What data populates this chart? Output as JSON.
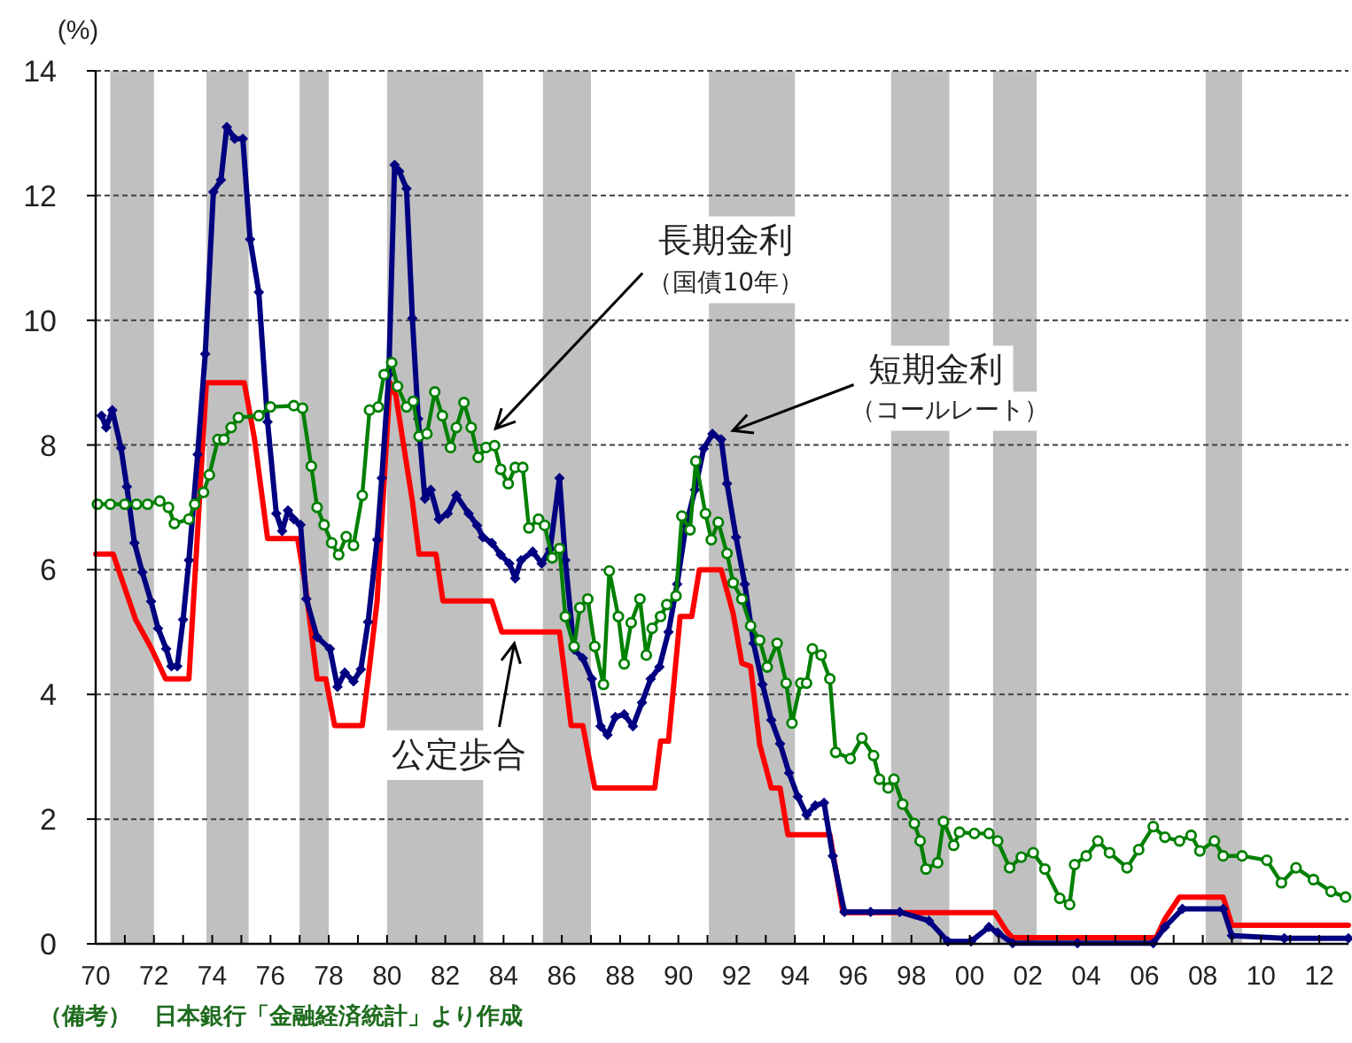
{
  "chart_data": {
    "type": "line",
    "ylabel": "(%)",
    "xlim": [
      1970,
      2013
    ],
    "ylim": [
      0,
      14
    ],
    "yticks": [
      0,
      2,
      4,
      6,
      8,
      10,
      12,
      14
    ],
    "grid": "y",
    "xticks": [
      {
        "value": 1970,
        "label": "70"
      },
      {
        "value": 1971,
        "label": null
      },
      {
        "value": 1972,
        "label": "72"
      },
      {
        "value": 1973,
        "label": null
      },
      {
        "value": 1974,
        "label": "74"
      },
      {
        "value": 1975,
        "label": null
      },
      {
        "value": 1976,
        "label": "76"
      },
      {
        "value": 1977,
        "label": null
      },
      {
        "value": 1978,
        "label": "78"
      },
      {
        "value": 1979,
        "label": null
      },
      {
        "value": 1980,
        "label": "80"
      },
      {
        "value": 1981,
        "label": null
      },
      {
        "value": 1982,
        "label": "82"
      },
      {
        "value": 1983,
        "label": null
      },
      {
        "value": 1984,
        "label": "84"
      },
      {
        "value": 1985,
        "label": null
      },
      {
        "value": 1986,
        "label": "86"
      },
      {
        "value": 1987,
        "label": null
      },
      {
        "value": 1988,
        "label": "88"
      },
      {
        "value": 1989,
        "label": null
      },
      {
        "value": 1990,
        "label": "90"
      },
      {
        "value": 1991,
        "label": null
      },
      {
        "value": 1992,
        "label": "92"
      },
      {
        "value": 1993,
        "label": null
      },
      {
        "value": 1994,
        "label": "94"
      },
      {
        "value": 1995,
        "label": null
      },
      {
        "value": 1996,
        "label": "96"
      },
      {
        "value": 1997,
        "label": null
      },
      {
        "value": 1998,
        "label": "98"
      },
      {
        "value": 1999,
        "label": null
      },
      {
        "value": 2000,
        "label": "00"
      },
      {
        "value": 2001,
        "label": null
      },
      {
        "value": 2002,
        "label": "02"
      },
      {
        "value": 2003,
        "label": null
      },
      {
        "value": 2004,
        "label": "04"
      },
      {
        "value": 2005,
        "label": null
      },
      {
        "value": 2006,
        "label": "06"
      },
      {
        "value": 2007,
        "label": null
      },
      {
        "value": 2008,
        "label": "08"
      },
      {
        "value": 2009,
        "label": null
      },
      {
        "value": 2010,
        "label": "10"
      },
      {
        "value": 2011,
        "label": null
      },
      {
        "value": 2012,
        "label": "12"
      }
    ],
    "bands": [
      {
        "axis": "x",
        "from": 1970.5,
        "to": 1972.0,
        "color": "#c0c0c0"
      },
      {
        "axis": "x",
        "from": 1973.8,
        "to": 1975.25,
        "color": "#c0c0c0"
      },
      {
        "axis": "x",
        "from": 1977.0,
        "to": 1978.0,
        "color": "#c0c0c0"
      },
      {
        "axis": "x",
        "from": 1980.0,
        "to": 1983.3,
        "color": "#c0c0c0"
      },
      {
        "axis": "x",
        "from": 1985.35,
        "to": 1987.0,
        "color": "#c0c0c0"
      },
      {
        "axis": "x",
        "from": 1991.05,
        "to": 1994.0,
        "color": "#c0c0c0"
      },
      {
        "axis": "x",
        "from": 1997.3,
        "to": 1999.3,
        "color": "#c0c0c0"
      },
      {
        "axis": "x",
        "from": 2000.8,
        "to": 2002.3,
        "color": "#c0c0c0"
      },
      {
        "axis": "x",
        "from": 2008.1,
        "to": 2009.35,
        "color": "#c0c0c0"
      }
    ],
    "series": [
      {
        "color": "#ff0000",
        "marker": "none",
        "x": [
          1970.0,
          1970.6,
          1971.37,
          1971.9,
          1972.4,
          1973.2,
          1973.8,
          1975.1,
          1975.45,
          1975.9,
          1976.93,
          1977.2,
          1977.6,
          1977.9,
          1978.2,
          1979.15,
          1979.35,
          1979.66,
          1980.1,
          1980.3,
          1980.87,
          1981.1,
          1981.68,
          1981.92,
          1983.6,
          1983.94,
          1985.92,
          1986.32,
          1986.72,
          1987.13,
          1989.19,
          1989.39,
          1989.66,
          1990.06,
          1990.46,
          1990.72,
          1991.47,
          1991.88,
          1992.18,
          1992.48,
          1992.79,
          1993.19,
          1993.49,
          1993.76,
          1995.2,
          1995.65,
          2000.86,
          2001.27,
          2001.47,
          2006.4,
          2006.7,
          2007.2,
          2008.7,
          2009.0,
          2013.0
        ],
        "values": [
          6.25,
          6.25,
          5.2,
          4.75,
          4.25,
          4.25,
          9.0,
          9.0,
          8.1,
          6.5,
          6.5,
          5.75,
          4.25,
          4.25,
          3.5,
          3.5,
          4.25,
          5.5,
          9.0,
          8.8,
          7.1,
          6.25,
          6.25,
          5.5,
          5.5,
          5.0,
          5.0,
          3.5,
          3.5,
          2.5,
          2.5,
          3.25,
          3.25,
          5.25,
          5.25,
          6.0,
          6.0,
          5.3,
          4.5,
          4.45,
          3.2,
          2.5,
          2.5,
          1.75,
          1.75,
          0.5,
          0.5,
          0.2,
          0.1,
          0.1,
          0.4,
          0.75,
          0.75,
          0.3,
          0.3
        ]
      },
      {
        "color": "#000080",
        "marker": "diamond",
        "x": [
          1970.2,
          1970.36,
          1970.57,
          1970.87,
          1971.07,
          1971.33,
          1971.6,
          1971.9,
          1972.14,
          1972.42,
          1972.6,
          1972.8,
          1973.0,
          1973.2,
          1973.5,
          1973.76,
          1974.04,
          1974.3,
          1974.5,
          1974.77,
          1975.05,
          1975.3,
          1975.6,
          1975.9,
          1976.2,
          1976.4,
          1976.6,
          1976.8,
          1977.03,
          1977.23,
          1977.6,
          1978.04,
          1978.3,
          1978.55,
          1978.85,
          1979.1,
          1979.35,
          1979.66,
          1979.82,
          1980.06,
          1980.26,
          1980.42,
          1980.67,
          1980.87,
          1981.07,
          1981.3,
          1981.5,
          1981.78,
          1982.08,
          1982.38,
          1982.8,
          1983.09,
          1983.29,
          1983.6,
          1983.9,
          1984.2,
          1984.4,
          1984.6,
          1985.0,
          1985.31,
          1985.6,
          1985.92,
          1986.12,
          1986.42,
          1986.72,
          1987.03,
          1987.33,
          1987.57,
          1987.84,
          1988.14,
          1988.44,
          1988.75,
          1989.05,
          1989.35,
          1989.66,
          1989.96,
          1990.26,
          1990.57,
          1990.87,
          1991.17,
          1991.47,
          1991.67,
          1991.98,
          1992.28,
          1992.58,
          1992.89,
          1993.19,
          1993.49,
          1993.8,
          1994.1,
          1994.4,
          1994.7,
          1995.0,
          1995.3,
          1995.7,
          1996.6,
          1997.6,
          1998.6,
          1999.25,
          2000.05,
          2000.66,
          2000.96,
          2001.47,
          2003.7,
          2006.3,
          2006.7,
          2007.3,
          2008.7,
          2009.0,
          2010.8,
          2013.0
        ],
        "values": [
          8.47,
          8.28,
          8.56,
          7.95,
          7.33,
          6.43,
          5.96,
          5.49,
          5.06,
          4.73,
          4.45,
          4.45,
          5.2,
          6.15,
          7.85,
          9.46,
          12.06,
          12.25,
          13.1,
          12.91,
          12.91,
          11.3,
          10.45,
          8.37,
          6.9,
          6.62,
          6.95,
          6.81,
          6.72,
          5.53,
          4.92,
          4.73,
          4.12,
          4.35,
          4.21,
          4.4,
          5.16,
          6.48,
          7.47,
          9.13,
          12.49,
          12.39,
          12.11,
          10.03,
          8.42,
          7.14,
          7.28,
          6.81,
          6.9,
          7.19,
          6.9,
          6.71,
          6.52,
          6.43,
          6.24,
          6.1,
          5.86,
          6.15,
          6.29,
          6.1,
          6.33,
          7.47,
          6.15,
          4.72,
          4.58,
          4.25,
          3.49,
          3.35,
          3.64,
          3.68,
          3.49,
          3.87,
          4.25,
          4.44,
          5.0,
          5.77,
          6.71,
          7.28,
          7.94,
          8.18,
          8.09,
          7.38,
          6.52,
          5.77,
          4.82,
          4.16,
          3.59,
          3.21,
          2.74,
          2.36,
          2.07,
          2.22,
          2.26,
          1.41,
          0.51,
          0.51,
          0.51,
          0.37,
          0.04,
          0.04,
          0.27,
          0.18,
          0.01,
          0.01,
          0.01,
          0.27,
          0.56,
          0.56,
          0.13,
          0.09,
          0.09
        ]
      },
      {
        "color": "#008000",
        "marker": "circle",
        "x": [
          1970.06,
          1970.5,
          1971.0,
          1971.4,
          1971.78,
          1972.2,
          1972.5,
          1972.7,
          1973.2,
          1973.4,
          1973.7,
          1973.9,
          1974.2,
          1974.4,
          1974.65,
          1974.9,
          1975.6,
          1976.0,
          1976.8,
          1977.1,
          1977.4,
          1977.6,
          1977.84,
          1978.1,
          1978.34,
          1978.6,
          1978.85,
          1979.15,
          1979.4,
          1979.7,
          1979.9,
          1980.16,
          1980.36,
          1980.67,
          1980.9,
          1981.1,
          1981.37,
          1981.64,
          1981.9,
          1982.18,
          1982.38,
          1982.64,
          1982.89,
          1983.13,
          1983.4,
          1983.69,
          1983.9,
          1984.16,
          1984.4,
          1984.66,
          1984.87,
          1985.2,
          1985.41,
          1985.67,
          1985.92,
          1986.12,
          1986.42,
          1986.62,
          1986.89,
          1987.13,
          1987.43,
          1987.63,
          1987.94,
          1988.14,
          1988.38,
          1988.68,
          1988.9,
          1989.1,
          1989.39,
          1989.6,
          1989.92,
          1990.12,
          1990.4,
          1990.6,
          1990.93,
          1991.13,
          1991.37,
          1991.67,
          1991.88,
          1992.18,
          1992.48,
          1992.79,
          1993.05,
          1993.39,
          1993.7,
          1993.9,
          1994.2,
          1994.4,
          1994.6,
          1994.9,
          1995.2,
          1995.4,
          1995.9,
          1996.3,
          1996.7,
          1996.9,
          1997.2,
          1997.4,
          1997.7,
          1998.1,
          1998.3,
          1998.5,
          1998.9,
          1999.1,
          1999.45,
          1999.65,
          2000.16,
          2000.66,
          2000.96,
          2001.37,
          2001.77,
          2002.18,
          2002.58,
          2003.09,
          2003.43,
          2003.6,
          2004.0,
          2004.4,
          2004.8,
          2005.4,
          2005.8,
          2006.3,
          2006.7,
          2007.2,
          2007.6,
          2007.9,
          2008.4,
          2008.7,
          2009.35,
          2010.2,
          2010.7,
          2011.2,
          2011.8,
          2012.4,
          2012.9
        ],
        "values": [
          7.05,
          7.05,
          7.05,
          7.05,
          7.05,
          7.1,
          7.0,
          6.74,
          6.81,
          7.05,
          7.24,
          7.52,
          8.09,
          8.09,
          8.28,
          8.44,
          8.47,
          8.61,
          8.63,
          8.59,
          7.66,
          7.0,
          6.72,
          6.43,
          6.24,
          6.53,
          6.39,
          7.19,
          8.56,
          8.61,
          9.13,
          9.32,
          8.94,
          8.61,
          8.7,
          8.14,
          8.18,
          8.85,
          8.47,
          7.96,
          8.28,
          8.68,
          8.28,
          7.8,
          7.96,
          7.99,
          7.61,
          7.38,
          7.64,
          7.64,
          6.67,
          6.81,
          6.71,
          6.19,
          6.34,
          5.25,
          4.77,
          5.39,
          5.53,
          4.77,
          4.16,
          5.98,
          5.25,
          4.49,
          5.15,
          5.53,
          4.63,
          5.06,
          5.25,
          5.44,
          5.58,
          6.86,
          6.64,
          7.74,
          6.9,
          6.48,
          6.76,
          6.26,
          5.79,
          5.53,
          5.1,
          4.87,
          4.44,
          4.82,
          4.18,
          3.54,
          4.18,
          4.18,
          4.73,
          4.63,
          4.25,
          3.07,
          2.97,
          3.3,
          3.02,
          2.64,
          2.5,
          2.64,
          2.24,
          1.93,
          1.65,
          1.2,
          1.3,
          1.96,
          1.58,
          1.79,
          1.77,
          1.77,
          1.65,
          1.22,
          1.39,
          1.46,
          1.2,
          0.73,
          0.63,
          1.27,
          1.41,
          1.65,
          1.46,
          1.22,
          1.51,
          1.88,
          1.71,
          1.65,
          1.74,
          1.49,
          1.65,
          1.41,
          1.41,
          1.34,
          0.98,
          1.22,
          1.03,
          0.84,
          0.75
        ]
      }
    ],
    "annotations": [
      {
        "text": "長期金利",
        "x": 1983.6,
        "y": 8.2
      },
      {
        "text": "（国債10年）",
        "x": 1983.6,
        "y": 8.2
      },
      {
        "text": "短期金利",
        "x": 1991.7,
        "y": 8.2
      },
      {
        "text": "（コールレート）",
        "x": 1991.7,
        "y": 8.2
      },
      {
        "text": "公定歩合",
        "x": 1984.4,
        "y": 4.9
      },
      "（備考）　日本銀行「金融経済統計」より作成"
    ]
  }
}
